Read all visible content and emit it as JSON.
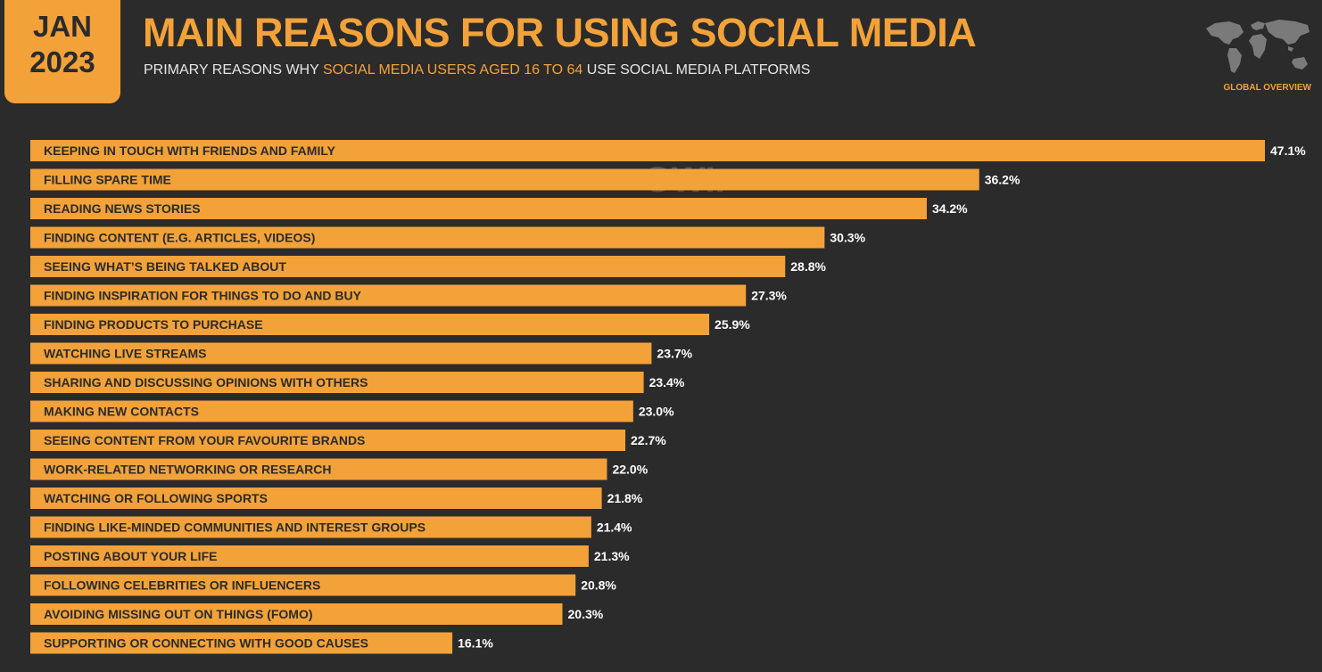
{
  "header": {
    "month": "JAN",
    "year": "2023",
    "title": "MAIN REASONS FOR USING SOCIAL MEDIA",
    "subtitle_pre": "PRIMARY REASONS WHY ",
    "subtitle_highlight": "SOCIAL MEDIA USERS AGED 16 TO 64",
    "subtitle_post": " USE SOCIAL MEDIA PLATFORMS",
    "corner_label": "GLOBAL OVERVIEW",
    "corner_icon": "world-map-icon"
  },
  "watermark": {
    "brand_a": "DATAREPORTAL",
    "brand_b": "GWI."
  },
  "colors": {
    "background": "#2b2b2b",
    "accent": "#f3a23a",
    "bar_text": "#2b2b2b",
    "value_text": "#ffffff"
  },
  "chart_data": {
    "type": "bar",
    "orientation": "horizontal",
    "unit": "%",
    "categories": [
      "KEEPING IN TOUCH WITH FRIENDS AND FAMILY",
      "FILLING SPARE TIME",
      "READING NEWS STORIES",
      "FINDING CONTENT (E.G. ARTICLES, VIDEOS)",
      "SEEING WHAT’S BEING TALKED ABOUT",
      "FINDING INSPIRATION FOR THINGS TO DO AND BUY",
      "FINDING PRODUCTS TO PURCHASE",
      "WATCHING LIVE STREAMS",
      "SHARING AND DISCUSSING OPINIONS WITH OTHERS",
      "MAKING NEW CONTACTS",
      "SEEING CONTENT FROM YOUR FAVOURITE BRANDS",
      "WORK-RELATED NETWORKING OR RESEARCH",
      "WATCHING OR FOLLOWING SPORTS",
      "FINDING LIKE-MINDED COMMUNITIES AND INTEREST GROUPS",
      "POSTING ABOUT YOUR LIFE",
      "FOLLOWING CELEBRITIES OR INFLUENCERS",
      "AVOIDING MISSING OUT ON THINGS (FOMO)",
      "SUPPORTING OR CONNECTING WITH GOOD CAUSES"
    ],
    "values": [
      47.1,
      36.2,
      34.2,
      30.3,
      28.8,
      27.3,
      25.9,
      23.7,
      23.4,
      23.0,
      22.7,
      22.0,
      21.8,
      21.4,
      21.3,
      20.8,
      20.3,
      16.1
    ],
    "value_labels": [
      "47.1%",
      "36.2%",
      "34.2%",
      "30.3%",
      "28.8%",
      "27.3%",
      "25.9%",
      "23.7%",
      "23.4%",
      "23.0%",
      "22.7%",
      "22.0%",
      "21.8%",
      "21.4%",
      "21.3%",
      "20.8%",
      "20.3%",
      "16.1%"
    ],
    "xlim": [
      0,
      47.1
    ],
    "grid": false,
    "legend": "none"
  }
}
